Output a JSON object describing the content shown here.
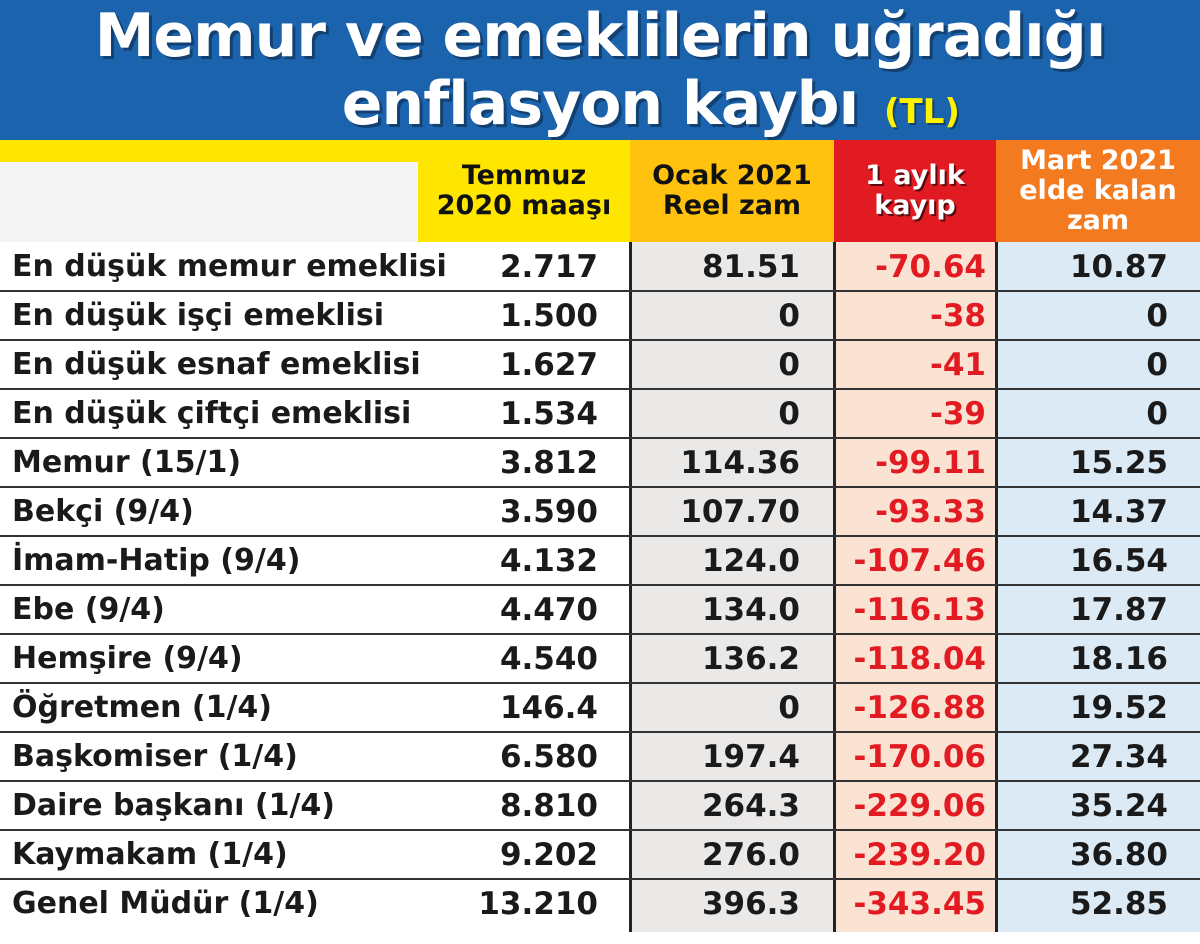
{
  "title": {
    "line1": "Memur ve emeklilerin uğradığı",
    "line2": "enflasyon kaybı",
    "unit": "(TL)"
  },
  "colors": {
    "title_band": "#1c63ad",
    "yellow": "#ffe600",
    "amber": "#ffc20e",
    "red": "#e21b23",
    "orange": "#f37a1f",
    "light_blue": "#dbeaf4",
    "light_orange": "#fbe3d3",
    "light_gray": "#ebe8e8"
  },
  "chart_data": {
    "type": "table",
    "title": "Memur ve emeklilerin uğradığı enflasyon kaybı",
    "unit": "(TL)",
    "columns": [
      "Temmuz\n2020 maaşı",
      "Ocak 2021\nReel zam",
      "1 aylık\nkayıp",
      "Mart 2021\nelde kalan\nzam"
    ],
    "rows": [
      {
        "label": "En düşük memur emeklisi",
        "values": [
          "2.717",
          "81.51",
          "-70.64",
          "10.87"
        ]
      },
      {
        "label": "En düşük işçi emeklisi",
        "values": [
          "1.500",
          "0",
          "-38",
          "0"
        ]
      },
      {
        "label": "En düşük esnaf emeklisi",
        "values": [
          "1.627",
          "0",
          "-41",
          "0"
        ]
      },
      {
        "label": "En düşük çiftçi emeklisi",
        "values": [
          "1.534",
          "0",
          "-39",
          "0"
        ]
      },
      {
        "label": "Memur (15/1)",
        "values": [
          "3.812",
          "114.36",
          "-99.11",
          "15.25"
        ]
      },
      {
        "label": "Bekçi (9/4)",
        "values": [
          "3.590",
          "107.70",
          "-93.33",
          "14.37"
        ]
      },
      {
        "label": "İmam-Hatip (9/4)",
        "values": [
          "4.132",
          "124.0",
          "-107.46",
          "16.54"
        ]
      },
      {
        "label": "Ebe (9/4)",
        "values": [
          "4.470",
          "134.0",
          "-116.13",
          "17.87"
        ]
      },
      {
        "label": "Hemşire (9/4)",
        "values": [
          "4.540",
          "136.2",
          "-118.04",
          "18.16"
        ]
      },
      {
        "label": "Öğretmen (1/4)",
        "values": [
          "146.4",
          "0",
          "-126.88",
          "19.52"
        ]
      },
      {
        "label": "Başkomiser (1/4)",
        "values": [
          "6.580",
          "197.4",
          "-170.06",
          "27.34"
        ]
      },
      {
        "label": "Daire başkanı (1/4)",
        "values": [
          "8.810",
          "264.3",
          "-229.06",
          "35.24"
        ]
      },
      {
        "label": "Kaymakam (1/4)",
        "values": [
          "9.202",
          "276.0",
          "-239.20",
          "36.80"
        ]
      },
      {
        "label": "Genel Müdür (1/4)",
        "values": [
          "13.210",
          "396.3",
          "-343.45",
          "52.85"
        ]
      }
    ]
  }
}
